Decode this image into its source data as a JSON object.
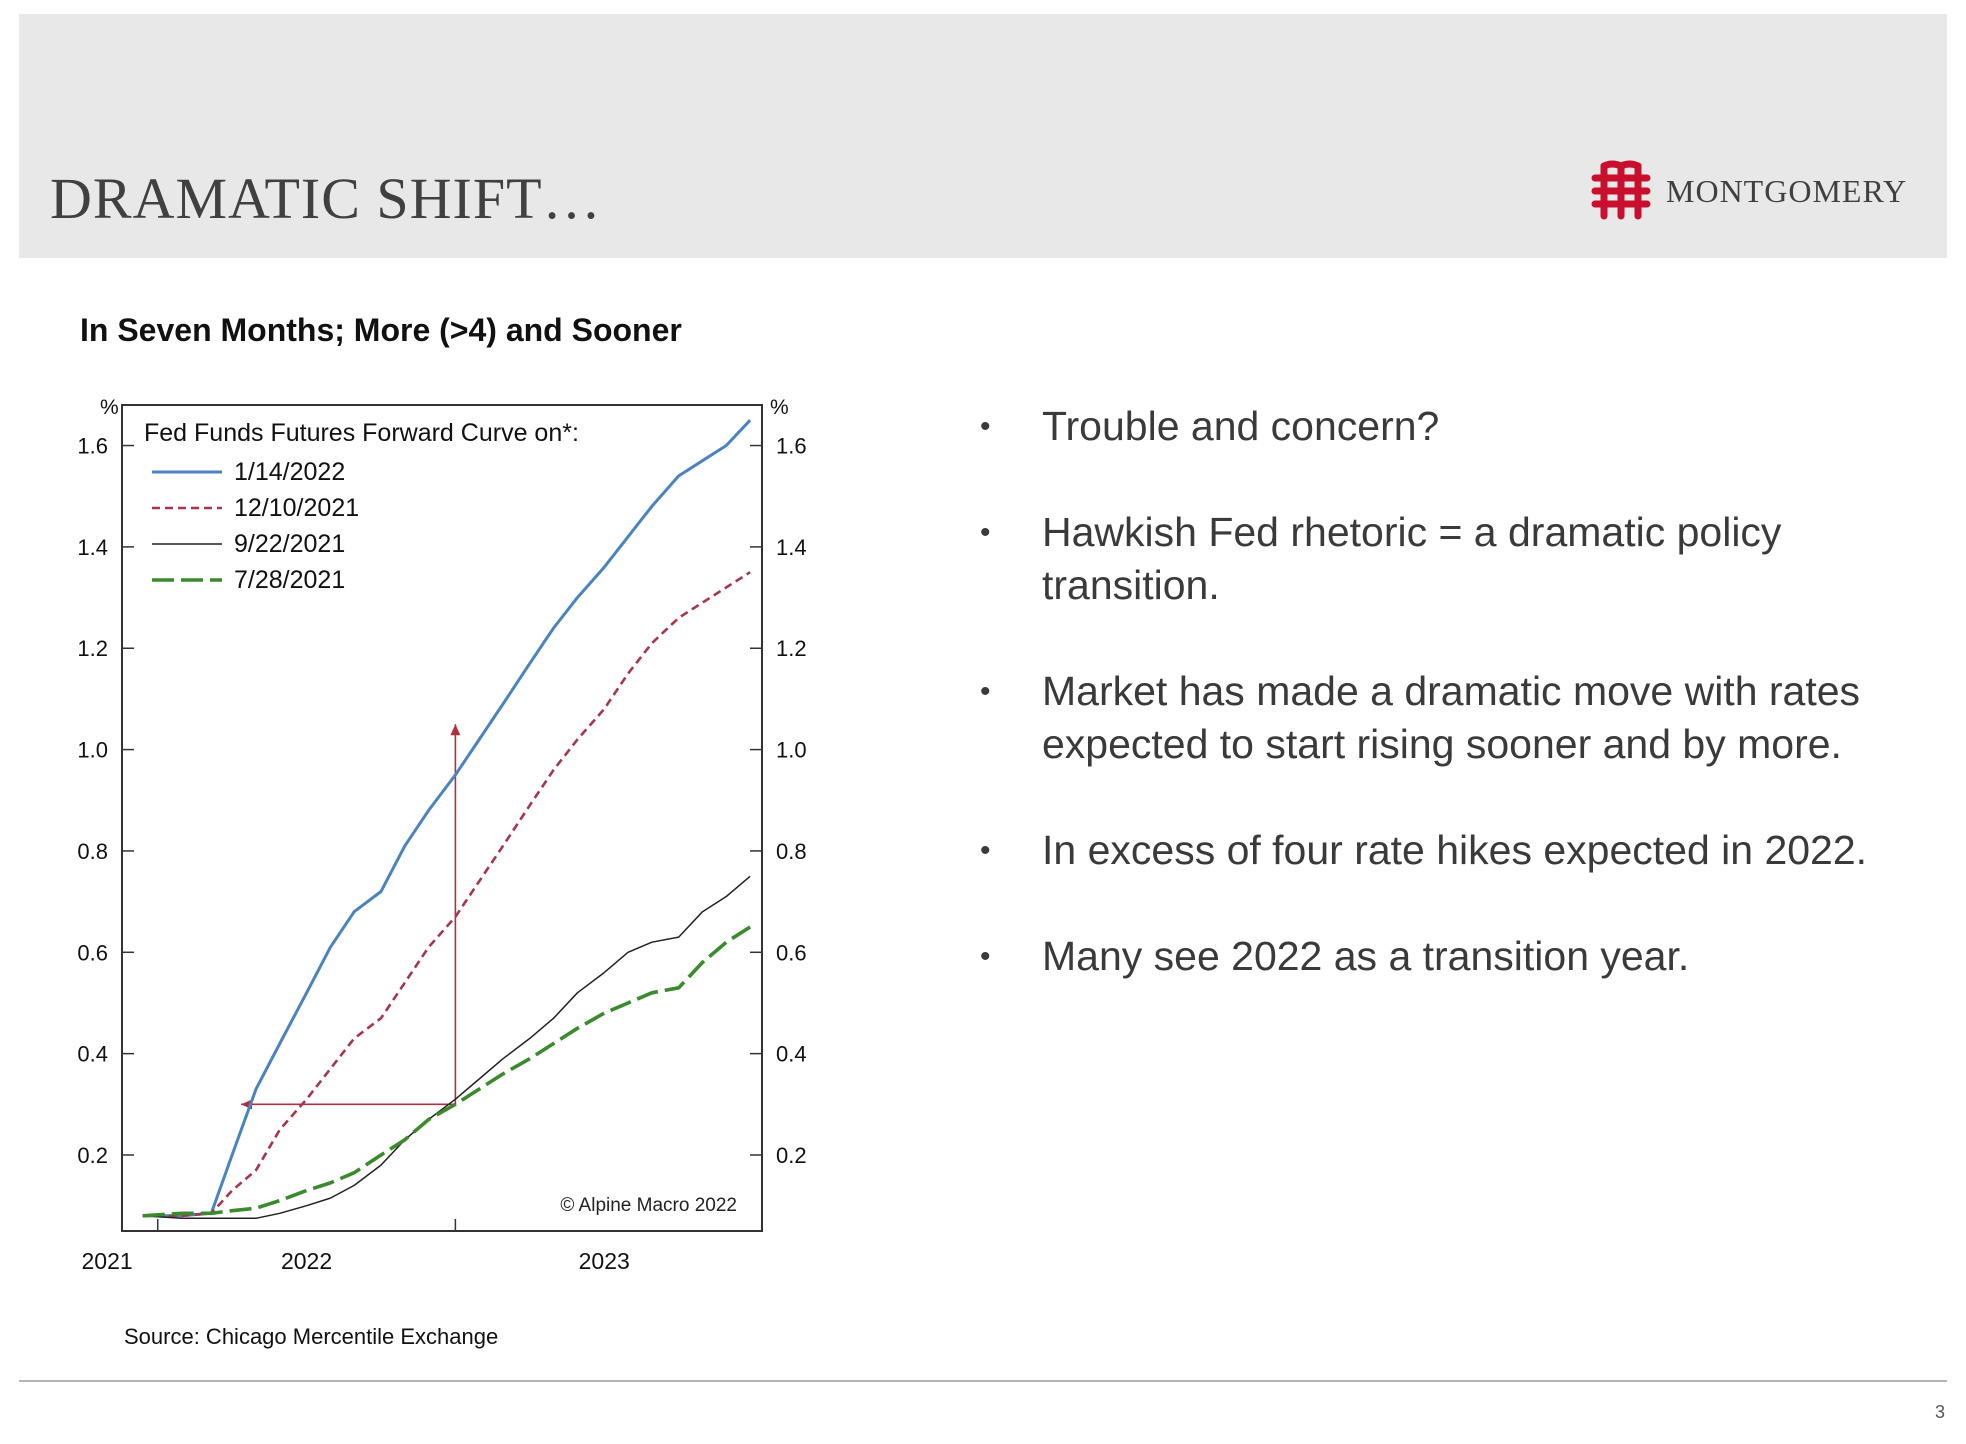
{
  "slide": {
    "title": "DRAMATIC SHIFT…",
    "logo_text": "MONTGOMERY",
    "chart_heading": "In Seven Months; More (>4) and Sooner",
    "source": "Source: Chicago Mercentile Exchange",
    "page_number": "3",
    "accent_color": "#c8102e"
  },
  "bullets": [
    "Trouble and concern?",
    "Hawkish Fed rhetoric = a dramatic policy transition.",
    "Market has made a dramatic move with rates expected to start rising sooner and by more.",
    "In excess of four rate hikes expected in 2022.",
    "Many see 2022 as a transition year."
  ],
  "chart_data": {
    "type": "line",
    "title": "",
    "legend_title": "Fed Funds Futures Forward Curve on*:",
    "legend_position": "top-left",
    "copyright": "© Alpine Macro 2022",
    "y_unit_label": "%",
    "ylim": [
      0.05,
      1.68
    ],
    "yticks": [
      0.2,
      0.4,
      0.6,
      0.8,
      1.0,
      1.2,
      1.4,
      1.6
    ],
    "ytick_labels": [
      "0.2",
      "0.4",
      "0.6",
      "0.8",
      "1.0",
      "1.2",
      "1.4",
      "1.6"
    ],
    "xlim": [
      2021.55,
      2023.7
    ],
    "xticks": [
      2021.67,
      2022.67
    ],
    "xtick_labels": [
      {
        "x": 2021.5,
        "label": "2021"
      },
      {
        "x": 2022.17,
        "label": "2022"
      },
      {
        "x": 2023.17,
        "label": "2023"
      }
    ],
    "grid": false,
    "series": [
      {
        "name": "1/14/2022",
        "color": "#4a83c0",
        "style": "solid",
        "x": [
          2021.62,
          2021.75,
          2021.85,
          2021.92,
          2022.0,
          2022.08,
          2022.17,
          2022.25,
          2022.33,
          2022.42,
          2022.5,
          2022.58,
          2022.67,
          2022.75,
          2022.83,
          2022.92,
          2023.0,
          2023.08,
          2023.17,
          2023.25,
          2023.33,
          2023.42,
          2023.5,
          2023.58,
          2023.66
        ],
        "y": [
          0.08,
          0.08,
          0.085,
          0.2,
          0.33,
          0.42,
          0.52,
          0.61,
          0.68,
          0.72,
          0.81,
          0.88,
          0.95,
          1.02,
          1.09,
          1.17,
          1.24,
          1.3,
          1.36,
          1.42,
          1.48,
          1.54,
          1.57,
          1.6,
          1.65
        ]
      },
      {
        "name": "12/10/2021",
        "color": "#a8364a",
        "style": "dashed",
        "x": [
          2021.62,
          2021.75,
          2021.85,
          2021.92,
          2022.0,
          2022.08,
          2022.17,
          2022.25,
          2022.33,
          2022.42,
          2022.5,
          2022.58,
          2022.67,
          2022.75,
          2022.83,
          2022.92,
          2023.0,
          2023.08,
          2023.17,
          2023.25,
          2023.33,
          2023.42,
          2023.5,
          2023.58,
          2023.66
        ],
        "y": [
          0.08,
          0.08,
          0.085,
          0.13,
          0.17,
          0.25,
          0.31,
          0.37,
          0.43,
          0.47,
          0.54,
          0.61,
          0.67,
          0.74,
          0.81,
          0.89,
          0.96,
          1.02,
          1.08,
          1.15,
          1.21,
          1.26,
          1.29,
          1.32,
          1.35
        ]
      },
      {
        "name": "9/22/2021",
        "color": "#222222",
        "style": "solid",
        "x": [
          2021.62,
          2021.75,
          2021.85,
          2021.92,
          2022.0,
          2022.08,
          2022.17,
          2022.25,
          2022.33,
          2022.42,
          2022.5,
          2022.58,
          2022.67,
          2022.75,
          2022.83,
          2022.92,
          2023.0,
          2023.08,
          2023.17,
          2023.25,
          2023.33,
          2023.42,
          2023.5,
          2023.58,
          2023.66
        ],
        "y": [
          0.08,
          0.075,
          0.075,
          0.075,
          0.075,
          0.085,
          0.1,
          0.115,
          0.14,
          0.18,
          0.23,
          0.27,
          0.31,
          0.35,
          0.39,
          0.43,
          0.47,
          0.52,
          0.56,
          0.6,
          0.62,
          0.63,
          0.68,
          0.71,
          0.75
        ]
      },
      {
        "name": "7/28/2021",
        "color": "#3b8a2e",
        "style": "longdash",
        "x": [
          2021.62,
          2021.75,
          2021.85,
          2021.92,
          2022.0,
          2022.08,
          2022.17,
          2022.25,
          2022.33,
          2022.42,
          2022.5,
          2022.58,
          2022.67,
          2022.75,
          2022.83,
          2022.92,
          2023.0,
          2023.08,
          2023.17,
          2023.25,
          2023.33,
          2023.42,
          2023.5,
          2023.58,
          2023.66
        ],
        "y": [
          0.08,
          0.085,
          0.085,
          0.09,
          0.095,
          0.11,
          0.13,
          0.145,
          0.165,
          0.2,
          0.23,
          0.27,
          0.3,
          0.33,
          0.36,
          0.39,
          0.42,
          0.45,
          0.48,
          0.5,
          0.52,
          0.53,
          0.58,
          0.62,
          0.65
        ]
      }
    ],
    "annotations": [
      {
        "type": "arrow",
        "color": "#b03040",
        "from": [
          2022.67,
          0.3
        ],
        "to": [
          2022.67,
          1.05
        ]
      },
      {
        "type": "arrow",
        "color": "#b03040",
        "from": [
          2022.67,
          0.3
        ],
        "to": [
          2021.95,
          0.3
        ]
      }
    ]
  }
}
